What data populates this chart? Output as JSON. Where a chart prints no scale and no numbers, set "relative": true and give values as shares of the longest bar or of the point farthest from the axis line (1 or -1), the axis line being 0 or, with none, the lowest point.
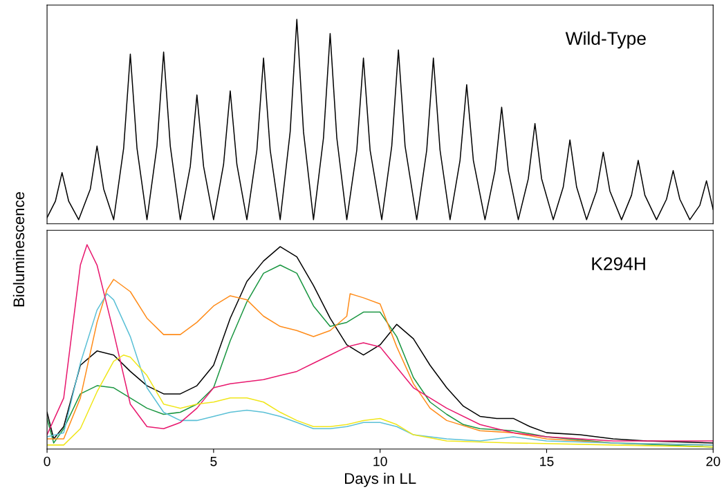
{
  "chart_data": [
    {
      "type": "line",
      "relative": true,
      "ylabel": "Bioluminescence",
      "annotations": [
        "Wild-Type"
      ],
      "xlim": [
        0,
        20
      ],
      "tick_labels": false,
      "grid": false,
      "legend": false,
      "series": [
        {
          "color": "#000000",
          "x": [
            0,
            0.25,
            0.45,
            0.65,
            0.95,
            1.3,
            1.5,
            1.7,
            2.0,
            2.3,
            2.5,
            2.7,
            3.0,
            3.3,
            3.5,
            3.7,
            4.0,
            4.3,
            4.5,
            4.7,
            5.0,
            5.3,
            5.5,
            5.7,
            6.0,
            6.3,
            6.5,
            6.7,
            7.0,
            7.3,
            7.5,
            7.7,
            8.0,
            8.3,
            8.5,
            8.7,
            9.0,
            9.3,
            9.5,
            9.7,
            10.05,
            10.35,
            10.55,
            10.75,
            11.1,
            11.4,
            11.6,
            11.8,
            12.1,
            12.4,
            12.6,
            12.8,
            13.15,
            13.45,
            13.65,
            13.85,
            14.15,
            14.45,
            14.65,
            14.85,
            15.2,
            15.5,
            15.7,
            15.9,
            16.2,
            16.5,
            16.7,
            16.9,
            17.25,
            17.55,
            17.75,
            17.95,
            18.3,
            18.6,
            18.8,
            19.0,
            19.3,
            19.6,
            19.8,
            20.0
          ],
          "values": [
            0.03,
            0.11,
            0.25,
            0.11,
            0.02,
            0.17,
            0.38,
            0.17,
            0.02,
            0.37,
            0.83,
            0.37,
            0.02,
            0.38,
            0.84,
            0.38,
            0.02,
            0.28,
            0.63,
            0.28,
            0.02,
            0.29,
            0.65,
            0.29,
            0.02,
            0.36,
            0.81,
            0.36,
            0.02,
            0.45,
            1.0,
            0.45,
            0.02,
            0.42,
            0.93,
            0.42,
            0.02,
            0.36,
            0.81,
            0.36,
            0.02,
            0.38,
            0.85,
            0.38,
            0.02,
            0.36,
            0.81,
            0.36,
            0.02,
            0.31,
            0.68,
            0.31,
            0.02,
            0.26,
            0.57,
            0.26,
            0.02,
            0.22,
            0.49,
            0.22,
            0.02,
            0.18,
            0.41,
            0.18,
            0.02,
            0.16,
            0.35,
            0.16,
            0.02,
            0.14,
            0.31,
            0.14,
            0.02,
            0.12,
            0.26,
            0.12,
            0.02,
            0.09,
            0.21,
            0.07
          ]
        }
      ]
    },
    {
      "type": "line",
      "relative": true,
      "xlabel": "Days in LL",
      "annotations": [
        "K294H"
      ],
      "xlim": [
        0,
        20
      ],
      "xticks": [
        0,
        5,
        10,
        15,
        20
      ],
      "tick_labels": "x",
      "grid": false,
      "legend": false,
      "series": [
        {
          "color": "#000000",
          "x": [
            0,
            0.2,
            0.5,
            1,
            1.5,
            2,
            2.5,
            3,
            3.5,
            4,
            4.5,
            5,
            5.5,
            6,
            6.5,
            7,
            7.5,
            8,
            8.5,
            9,
            9.5,
            10,
            10.5,
            11,
            11.5,
            12,
            12.5,
            13,
            13.5,
            14,
            14.5,
            15,
            16,
            17,
            18,
            20
          ],
          "values": [
            0.18,
            0.05,
            0.11,
            0.41,
            0.48,
            0.46,
            0.38,
            0.31,
            0.27,
            0.27,
            0.31,
            0.41,
            0.64,
            0.82,
            0.92,
            0.99,
            0.94,
            0.8,
            0.64,
            0.51,
            0.46,
            0.51,
            0.61,
            0.54,
            0.41,
            0.3,
            0.21,
            0.16,
            0.15,
            0.15,
            0.11,
            0.08,
            0.07,
            0.05,
            0.04,
            0.03
          ]
        },
        {
          "color": "#1a9641",
          "x": [
            0,
            0.2,
            0.5,
            1,
            1.5,
            2,
            2.5,
            3,
            3.5,
            4,
            4.5,
            5,
            5.5,
            6,
            6.5,
            7,
            7.5,
            8,
            8.5,
            9,
            9.5,
            10,
            10.5,
            11,
            11.5,
            12,
            12.5,
            13,
            14,
            15,
            17,
            20
          ],
          "values": [
            0.15,
            0.03,
            0.1,
            0.27,
            0.31,
            0.3,
            0.25,
            0.2,
            0.17,
            0.18,
            0.22,
            0.3,
            0.53,
            0.72,
            0.86,
            0.9,
            0.86,
            0.7,
            0.6,
            0.62,
            0.67,
            0.67,
            0.55,
            0.35,
            0.23,
            0.17,
            0.12,
            0.1,
            0.09,
            0.06,
            0.03,
            0.01
          ]
        },
        {
          "color": "#ff8c1a",
          "x": [
            0,
            0.5,
            1,
            1.5,
            1.8,
            2,
            2.5,
            3,
            3.5,
            4,
            4.5,
            5,
            5.5,
            6,
            6.5,
            7,
            7.5,
            8,
            8.5,
            9,
            9.1,
            9.5,
            10,
            10.5,
            11,
            11.5,
            12,
            13,
            14,
            15,
            17,
            20
          ],
          "values": [
            0.05,
            0.05,
            0.25,
            0.62,
            0.78,
            0.83,
            0.77,
            0.64,
            0.56,
            0.56,
            0.62,
            0.7,
            0.75,
            0.73,
            0.65,
            0.6,
            0.58,
            0.55,
            0.58,
            0.65,
            0.76,
            0.74,
            0.71,
            0.5,
            0.32,
            0.2,
            0.14,
            0.09,
            0.08,
            0.05,
            0.03,
            0.02
          ]
        },
        {
          "color": "#5bc0d6",
          "x": [
            0,
            0.5,
            1,
            1.5,
            1.8,
            2,
            2.5,
            3,
            3.5,
            4,
            4.5,
            5,
            5.5,
            6,
            6.5,
            7,
            7.5,
            8,
            8.5,
            9,
            9.5,
            10,
            10.5,
            11,
            12,
            13,
            14,
            15,
            17,
            20
          ],
          "values": [
            0.06,
            0.08,
            0.42,
            0.68,
            0.76,
            0.73,
            0.55,
            0.3,
            0.18,
            0.14,
            0.14,
            0.16,
            0.18,
            0.19,
            0.18,
            0.16,
            0.13,
            0.1,
            0.1,
            0.11,
            0.13,
            0.13,
            0.11,
            0.07,
            0.05,
            0.04,
            0.06,
            0.04,
            0.03,
            0.02
          ]
        },
        {
          "color": "#e8186e",
          "x": [
            0,
            0.5,
            1,
            1.2,
            1.5,
            2,
            2.5,
            3,
            3.5,
            4,
            4.5,
            5,
            5.5,
            6,
            6.5,
            7,
            7.5,
            8,
            8.5,
            9,
            9.5,
            10,
            10.5,
            11,
            11.5,
            12,
            13,
            14,
            15,
            17,
            20
          ],
          "values": [
            0.07,
            0.25,
            0.9,
            1.0,
            0.9,
            0.57,
            0.22,
            0.11,
            0.1,
            0.13,
            0.2,
            0.3,
            0.32,
            0.33,
            0.34,
            0.36,
            0.38,
            0.42,
            0.46,
            0.5,
            0.52,
            0.5,
            0.4,
            0.3,
            0.25,
            0.2,
            0.12,
            0.08,
            0.06,
            0.04,
            0.04
          ]
        },
        {
          "color": "#f0e61a",
          "x": [
            0,
            0.5,
            1,
            1.5,
            2,
            2.3,
            2.5,
            3,
            3.5,
            4,
            4.5,
            5,
            5.5,
            6,
            6.5,
            7,
            7.5,
            8,
            8.5,
            9,
            9.5,
            10,
            10.5,
            11,
            12,
            14,
            17,
            20
          ],
          "values": [
            0.02,
            0.02,
            0.1,
            0.28,
            0.43,
            0.46,
            0.45,
            0.36,
            0.22,
            0.2,
            0.22,
            0.23,
            0.25,
            0.25,
            0.23,
            0.18,
            0.14,
            0.11,
            0.11,
            0.12,
            0.14,
            0.15,
            0.12,
            0.07,
            0.04,
            0.03,
            0.02,
            0.01
          ]
        }
      ]
    }
  ]
}
